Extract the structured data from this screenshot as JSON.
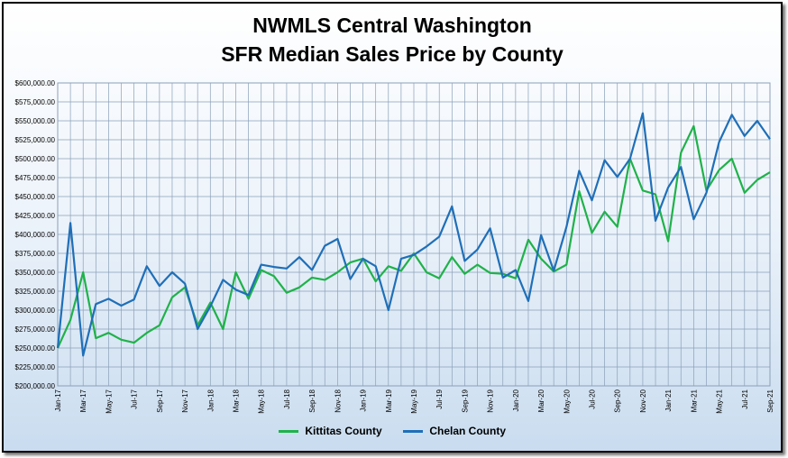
{
  "chart_data": {
    "type": "line",
    "title": "NWMLS Central Washington",
    "subtitle": "SFR Median Sales Price by County",
    "xlabel": "",
    "ylabel": "",
    "ylim": [
      200000,
      600000
    ],
    "yticks": [
      200000,
      225000,
      250000,
      275000,
      300000,
      325000,
      350000,
      375000,
      400000,
      425000,
      450000,
      475000,
      500000,
      525000,
      550000,
      575000,
      600000
    ],
    "ytick_labels": [
      "$200,000.00",
      "$225,000.00",
      "$250,000.00",
      "$275,000.00",
      "$300,000.00",
      "$325,000.00",
      "$350,000.00",
      "$375,000.00",
      "$400,000.00",
      "$425,000.00",
      "$450,000.00",
      "$475,000.00",
      "$500,000.00",
      "$525,000.00",
      "$550,000.00",
      "$575,000.00",
      "$600,000.00"
    ],
    "grid": true,
    "legend": "bottom",
    "categories": [
      "Jan-17",
      "Feb-17",
      "Mar-17",
      "Apr-17",
      "May-17",
      "Jun-17",
      "Jul-17",
      "Aug-17",
      "Sep-17",
      "Oct-17",
      "Nov-17",
      "Dec-17",
      "Jan-18",
      "Feb-18",
      "Mar-18",
      "Apr-18",
      "May-18",
      "Jun-18",
      "Jul-18",
      "Aug-18",
      "Sep-18",
      "Oct-18",
      "Nov-18",
      "Dec-18",
      "Jan-19",
      "Feb-19",
      "Mar-19",
      "Apr-19",
      "May-19",
      "Jun-19",
      "Jul-19",
      "Aug-19",
      "Sep-19",
      "Oct-19",
      "Nov-19",
      "Dec-19",
      "Jan-20",
      "Feb-20",
      "Mar-20",
      "Apr-20",
      "May-20",
      "Jun-20",
      "Jul-20",
      "Aug-20",
      "Sep-20",
      "Oct-20",
      "Nov-20",
      "Dec-20",
      "Jan-21",
      "Feb-21",
      "Mar-21",
      "Apr-21",
      "May-21",
      "Jun-21",
      "Jul-21",
      "Aug-21",
      "Sep-21"
    ],
    "label_every": 2,
    "series": [
      {
        "name": "Kittitas County",
        "color": "#1fb24a",
        "values": [
          250000,
          287000,
          350000,
          263000,
          270000,
          261000,
          257000,
          270000,
          280000,
          317000,
          330000,
          280000,
          310000,
          275000,
          350000,
          315000,
          353000,
          345000,
          323000,
          330000,
          343000,
          340000,
          350000,
          363000,
          368000,
          338000,
          358000,
          352000,
          375000,
          350000,
          342000,
          370000,
          348000,
          360000,
          349000,
          348000,
          342000,
          393000,
          368000,
          351000,
          360000,
          457000,
          402000,
          430000,
          410000,
          500000,
          458000,
          453000,
          391000,
          508000,
          543000,
          458000,
          485000,
          500000,
          455000,
          472000,
          482000
        ]
      },
      {
        "name": "Chelan County",
        "color": "#1f6fb8",
        "values": [
          250000,
          415000,
          240000,
          308000,
          315000,
          306000,
          314000,
          358000,
          332000,
          350000,
          335000,
          275000,
          305000,
          340000,
          327000,
          320000,
          360000,
          357000,
          355000,
          370000,
          353000,
          385000,
          394000,
          341000,
          368000,
          358000,
          300000,
          368000,
          373000,
          384000,
          397000,
          437000,
          365000,
          380000,
          408000,
          343000,
          353000,
          312000,
          399000,
          352000,
          410000,
          484000,
          445000,
          498000,
          476000,
          500000,
          560000,
          418000,
          462000,
          489000,
          420000,
          455000,
          522000,
          558000,
          530000,
          550000,
          526000
        ]
      }
    ]
  }
}
